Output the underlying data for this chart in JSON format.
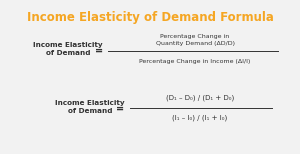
{
  "title": "Income Elasticity of Demand Formula",
  "title_color": "#F5A623",
  "title_fontsize": 8.5,
  "bg_color": "#F2F2F2",
  "text_color": "#333333",
  "formula1_left": "Income Elasticity\nof Demand",
  "formula1_eq": "=",
  "formula1_num": "Percentage Change in\nQuantity Demand (ΔD/D)",
  "formula1_den": "Percentage Change in Income (ΔI/I)",
  "formula2_left": "Income Elasticity\nof Demand",
  "formula2_eq": "=",
  "formula2_num": "(D₁ – D₀) / (D₁ + D₀)",
  "formula2_den": "(I₁ – I₀) / (I₁ + I₀)"
}
